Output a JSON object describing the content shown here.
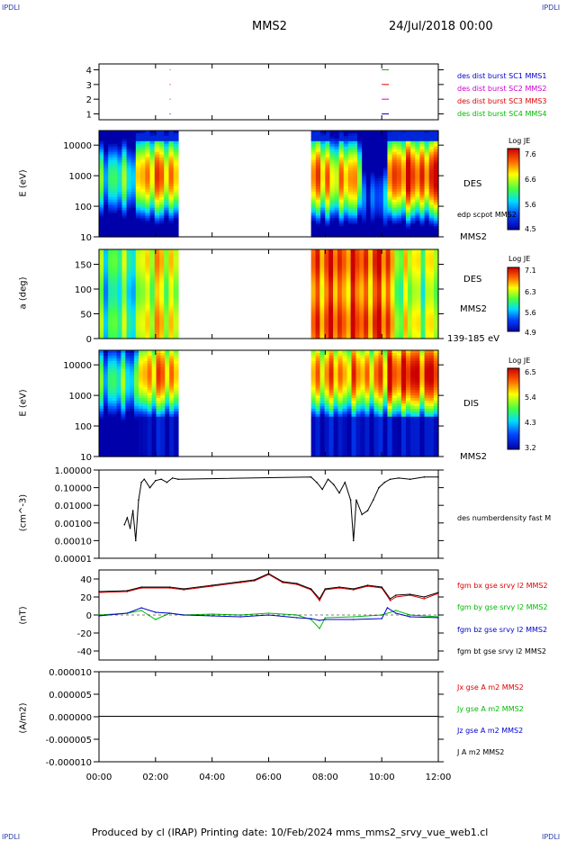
{
  "header": {
    "corner_tl": "IPDLI",
    "corner_tr": "IPDLI",
    "corner_bl": "IPDLI",
    "corner_br": "IPDLI",
    "spacecraft": "MMS2",
    "date": "24/Jul/2018 00:00"
  },
  "footer": {
    "text": "Produced by cl (IRAP)   Printing date: 10/Feb/2024   mms_mms2_srvy_vue_web1.cl"
  },
  "time_axis": {
    "ticks": [
      "00:00",
      "02:00",
      "04:00",
      "06:00",
      "08:00",
      "10:00",
      "12:00"
    ]
  },
  "panels": {
    "burst": {
      "ticks": [
        "1",
        "2",
        "3",
        "4"
      ],
      "legend": [
        {
          "label": "des dist burst SC1 MMS1",
          "color": "#0000cc"
        },
        {
          "label": "des dist burst SC2 MMS2",
          "color": "#cc00cc"
        },
        {
          "label": "des dist burst SC3 MMS3",
          "color": "#dd0000"
        },
        {
          "label": "des dist burst SC4 MMS4",
          "color": "#00bb00"
        }
      ]
    },
    "des_energy": {
      "ylabel": "E (eV)",
      "ticks": [
        "10",
        "100",
        "1000",
        "10000"
      ],
      "label_species": "DES",
      "label_overlay": "edp scpot MMS2",
      "label_sc": "MMS2",
      "cbar_title": "Log JE",
      "cbar_ticks": [
        "4.5",
        "5.6",
        "6.6",
        "7.6"
      ]
    },
    "des_pitch": {
      "ylabel": "a (deg)",
      "ticks": [
        "0",
        "50",
        "100",
        "150"
      ],
      "label_species": "DES",
      "label_sc": "MMS2",
      "label_range": "139-185 eV",
      "cbar_title": "Log JE",
      "cbar_ticks": [
        "4.9",
        "5.6",
        "6.3",
        "7.1"
      ]
    },
    "dis_energy": {
      "ylabel": "E (eV)",
      "ticks": [
        "10",
        "100",
        "1000",
        "10000"
      ],
      "label_species": "DIS",
      "label_sc": "MMS2",
      "cbar_title": "Log JE",
      "cbar_ticks": [
        "3.2",
        "4.3",
        "5.4",
        "6.5"
      ]
    },
    "density": {
      "ylabel": "(cm^-3)",
      "ticks": [
        "0.00001",
        "0.00010",
        "0.00100",
        "0.01000",
        "0.10000",
        "1.00000"
      ],
      "legend": "des numberdensity fast M"
    },
    "bfield": {
      "ylabel": "(nT)",
      "ticks": [
        "-40",
        "-20",
        "0",
        "20",
        "40"
      ],
      "legend": [
        {
          "label": "fgm bx gse srvy l2 MMS2",
          "color": "#dd0000"
        },
        {
          "label": "fgm by gse srvy l2 MMS2",
          "color": "#00bb00"
        },
        {
          "label": "fgm bz gse srvy l2 MMS2",
          "color": "#0000cc"
        },
        {
          "label": "fgm bt gse srvy l2 MMS2",
          "color": "#000000"
        }
      ]
    },
    "current": {
      "ylabel": "(A/m2)",
      "ticks": [
        "-0.000010",
        "-0.000005",
        "0.000000",
        "0.000005",
        "0.000010"
      ],
      "legend": [
        {
          "label": "Jx gse A m2 MMS2",
          "color": "#dd0000"
        },
        {
          "label": "Jy gse A m2 MMS2",
          "color": "#00bb00"
        },
        {
          "label": "Jz gse A m2 MMS2",
          "color": "#0000cc"
        },
        {
          "label": "J A m2 MMS2",
          "color": "#000000"
        }
      ]
    }
  },
  "chart_data": [
    {
      "type": "scatter",
      "panel": "burst",
      "xlim": [
        0,
        12
      ],
      "ylim": [
        0.6,
        4.4
      ],
      "series": [
        {
          "name": "des dist burst SC1 MMS1",
          "color": "#0000cc",
          "y": 1,
          "intervals": [
            [
              2.5,
              2.52
            ],
            [
              10.0,
              10.25
            ]
          ]
        },
        {
          "name": "des dist burst SC2 MMS2",
          "color": "#cc00cc",
          "y": 2,
          "intervals": [
            [
              2.5,
              2.52
            ],
            [
              10.0,
              10.25
            ]
          ]
        },
        {
          "name": "des dist burst SC3 MMS3",
          "color": "#dd0000",
          "y": 3,
          "intervals": [
            [
              2.5,
              2.52
            ],
            [
              10.0,
              10.25
            ]
          ]
        },
        {
          "name": "des dist burst SC4 MMS4",
          "color": "#00bb00",
          "y": 4,
          "intervals": [
            [
              2.5,
              2.52
            ],
            [
              10.0,
              10.25
            ]
          ]
        }
      ]
    },
    {
      "type": "heatmap",
      "panel": "des_energy",
      "xlim": [
        0,
        12
      ],
      "ylim": [
        10,
        30000
      ],
      "yscale": "log",
      "zlim": [
        4.5,
        7.6
      ],
      "colorbar_label": "Log JE",
      "gaps": [
        [
          2.8,
          7.5
        ]
      ],
      "segments": [
        {
          "x": [
            0.0,
            1.3
          ],
          "peak_E": 800,
          "level": 0.45
        },
        {
          "x": [
            1.3,
            2.8
          ],
          "peak_E": 1000,
          "level": 0.8
        },
        {
          "x": [
            7.5,
            8.0
          ],
          "peak_E": 1000,
          "level": 0.85
        },
        {
          "x": [
            8.0,
            9.3
          ],
          "peak_E": 800,
          "level": 0.75
        },
        {
          "x": [
            9.3,
            10.2
          ],
          "peak_E": 200,
          "level": 0.2
        },
        {
          "x": [
            10.2,
            12.0
          ],
          "peak_E": 1000,
          "level": 0.9
        }
      ]
    },
    {
      "type": "heatmap",
      "panel": "des_pitch",
      "xlim": [
        0,
        12
      ],
      "ylim": [
        0,
        180
      ],
      "zlim": [
        4.9,
        7.1
      ],
      "colorbar_label": "Log JE",
      "gaps": [
        [
          2.8,
          7.5
        ]
      ],
      "segments": [
        {
          "x": [
            0.0,
            1.3
          ],
          "level": 0.45
        },
        {
          "x": [
            1.3,
            2.8
          ],
          "level": 0.65
        },
        {
          "x": [
            7.5,
            10.3
          ],
          "level": 0.85
        },
        {
          "x": [
            10.3,
            12.0
          ],
          "level": 0.6
        }
      ]
    },
    {
      "type": "heatmap",
      "panel": "dis_energy",
      "xlim": [
        0,
        12
      ],
      "ylim": [
        10,
        30000
      ],
      "yscale": "log",
      "zlim": [
        3.2,
        6.5
      ],
      "colorbar_label": "Log JE",
      "gaps": [
        [
          2.8,
          7.5
        ]
      ],
      "segments": [
        {
          "x": [
            0.0,
            1.4
          ],
          "peak_E": 3000,
          "level": 0.45
        },
        {
          "x": [
            1.4,
            2.8
          ],
          "peak_E": 5000,
          "level": 0.8
        },
        {
          "x": [
            7.5,
            10.2
          ],
          "peak_E": 5000,
          "level": 0.8
        },
        {
          "x": [
            10.2,
            12.0
          ],
          "peak_E": 5000,
          "level": 0.95
        }
      ]
    },
    {
      "type": "line",
      "panel": "density",
      "xlim": [
        0,
        12
      ],
      "ylim": [
        1e-05,
        1.0
      ],
      "yscale": "log",
      "series": [
        {
          "name": "des numberdensity fast M",
          "color": "#000000",
          "x": [
            0.9,
            1.0,
            1.1,
            1.2,
            1.3,
            1.4,
            1.5,
            1.6,
            1.8,
            2.0,
            2.2,
            2.4,
            2.6,
            2.8,
            7.5,
            7.7,
            7.9,
            8.1,
            8.3,
            8.5,
            8.7,
            8.9,
            9.0,
            9.1,
            9.3,
            9.5,
            9.7,
            9.9,
            10.1,
            10.3,
            10.6,
            11.0,
            11.5,
            12.0
          ],
          "y": [
            0.0008,
            0.002,
            0.0005,
            0.005,
            0.0001,
            0.02,
            0.2,
            0.3,
            0.1,
            0.25,
            0.3,
            0.2,
            0.35,
            0.3,
            0.4,
            0.2,
            0.08,
            0.3,
            0.15,
            0.05,
            0.2,
            0.02,
            0.0001,
            0.02,
            0.003,
            0.005,
            0.02,
            0.1,
            0.2,
            0.3,
            0.35,
            0.3,
            0.4,
            0.4
          ]
        }
      ]
    },
    {
      "type": "line",
      "panel": "bfield",
      "xlim": [
        0,
        12
      ],
      "ylim": [
        -50,
        50
      ],
      "series": [
        {
          "name": "fgm bx gse srvy l2 MMS2",
          "color": "#dd0000",
          "x": [
            0,
            1,
            1.5,
            2.5,
            3,
            4,
            5,
            5.5,
            6,
            6.5,
            7,
            7.5,
            7.8,
            8,
            8.5,
            9,
            9.5,
            10,
            10.3,
            10.5,
            11,
            11.5,
            12
          ],
          "y": [
            25,
            26,
            30,
            30,
            28,
            32,
            36,
            38,
            45,
            36,
            34,
            28,
            16,
            28,
            30,
            28,
            32,
            30,
            16,
            20,
            22,
            18,
            24
          ]
        },
        {
          "name": "fgm by gse srvy l2 MMS2",
          "color": "#00bb00",
          "x": [
            0,
            1,
            1.5,
            2,
            2.5,
            3,
            4,
            5,
            6,
            7,
            7.5,
            7.8,
            8,
            9,
            10,
            10.5,
            11,
            12
          ],
          "y": [
            0,
            2,
            5,
            -5,
            2,
            0,
            1,
            0,
            2,
            0,
            -5,
            -15,
            -3,
            -2,
            0,
            5,
            0,
            -2
          ]
        },
        {
          "name": "fgm bz gse srvy l2 MMS2",
          "color": "#0000cc",
          "x": [
            0,
            1,
            1.5,
            2,
            2.5,
            3,
            4,
            5,
            6,
            7,
            7.5,
            7.8,
            8,
            9,
            10,
            10.2,
            10.5,
            11,
            12
          ],
          "y": [
            -1,
            2,
            8,
            3,
            2,
            0,
            -1,
            -2,
            0,
            -3,
            -4,
            -6,
            -5,
            -5,
            -4,
            8,
            2,
            -2,
            -3
          ]
        },
        {
          "name": "fgm bt gse srvy l2 MMS2",
          "color": "#000000",
          "x": [
            0,
            1,
            1.5,
            2.5,
            3,
            4,
            5,
            5.5,
            6,
            6.5,
            7,
            7.5,
            7.8,
            8,
            8.5,
            9,
            9.5,
            10,
            10.3,
            10.5,
            11,
            11.5,
            12
          ],
          "y": [
            26,
            27,
            31,
            31,
            29,
            33,
            37,
            39,
            46,
            37,
            35,
            29,
            18,
            29,
            31,
            29,
            33,
            31,
            18,
            22,
            23,
            20,
            25
          ]
        }
      ]
    },
    {
      "type": "line",
      "panel": "current",
      "xlim": [
        0,
        12
      ],
      "ylim": [
        -1e-05,
        1e-05
      ],
      "series": [
        {
          "name": "J A m2 MMS2",
          "color": "#000000",
          "x": [
            0,
            12
          ],
          "y": [
            1e-07,
            1e-07
          ]
        }
      ]
    }
  ]
}
